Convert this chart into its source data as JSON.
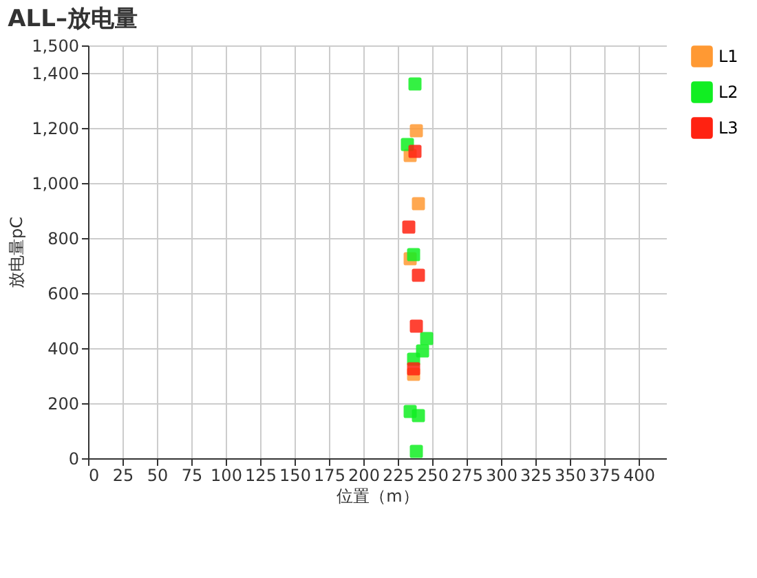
{
  "chart_data": {
    "type": "scatter",
    "title": "ALL–放电量",
    "xlabel": "位置（m）",
    "ylabel": "放电量pC",
    "xlim": [
      0,
      420
    ],
    "xticks": [
      0,
      25,
      50,
      75,
      100,
      125,
      150,
      175,
      200,
      225,
      250,
      275,
      300,
      325,
      350,
      375,
      400
    ],
    "ylim": [
      0,
      1500
    ],
    "yticks": [
      0,
      200,
      400,
      600,
      800,
      {
        "value": 1000,
        "label": "1,000"
      },
      {
        "value": 1200,
        "label": "1,200"
      },
      {
        "value": 1400,
        "label": "1,400"
      },
      {
        "value": 1500,
        "label": "1,500"
      }
    ],
    "grid": true,
    "legend": "top right",
    "marker": "square",
    "series": [
      {
        "name": "L1",
        "color": "#ff9933",
        "x": [
          238.5,
          234,
          240,
          234,
          236.5
        ],
        "values": [
          1190,
          1100,
          925,
          725,
          305
        ]
      },
      {
        "name": "L2",
        "color": "#11ee22",
        "x": [
          237.5,
          232,
          236.5,
          246,
          243,
          236.5,
          234,
          240,
          238.5
        ],
        "values": [
          1360,
          1140,
          740,
          435,
          390,
          360,
          170,
          155,
          25
        ]
      },
      {
        "name": "L3",
        "color": "#ff2211",
        "x": [
          237.5,
          233,
          240,
          238.5,
          236.5
        ],
        "values": [
          1115,
          840,
          665,
          480,
          325
        ]
      }
    ]
  }
}
